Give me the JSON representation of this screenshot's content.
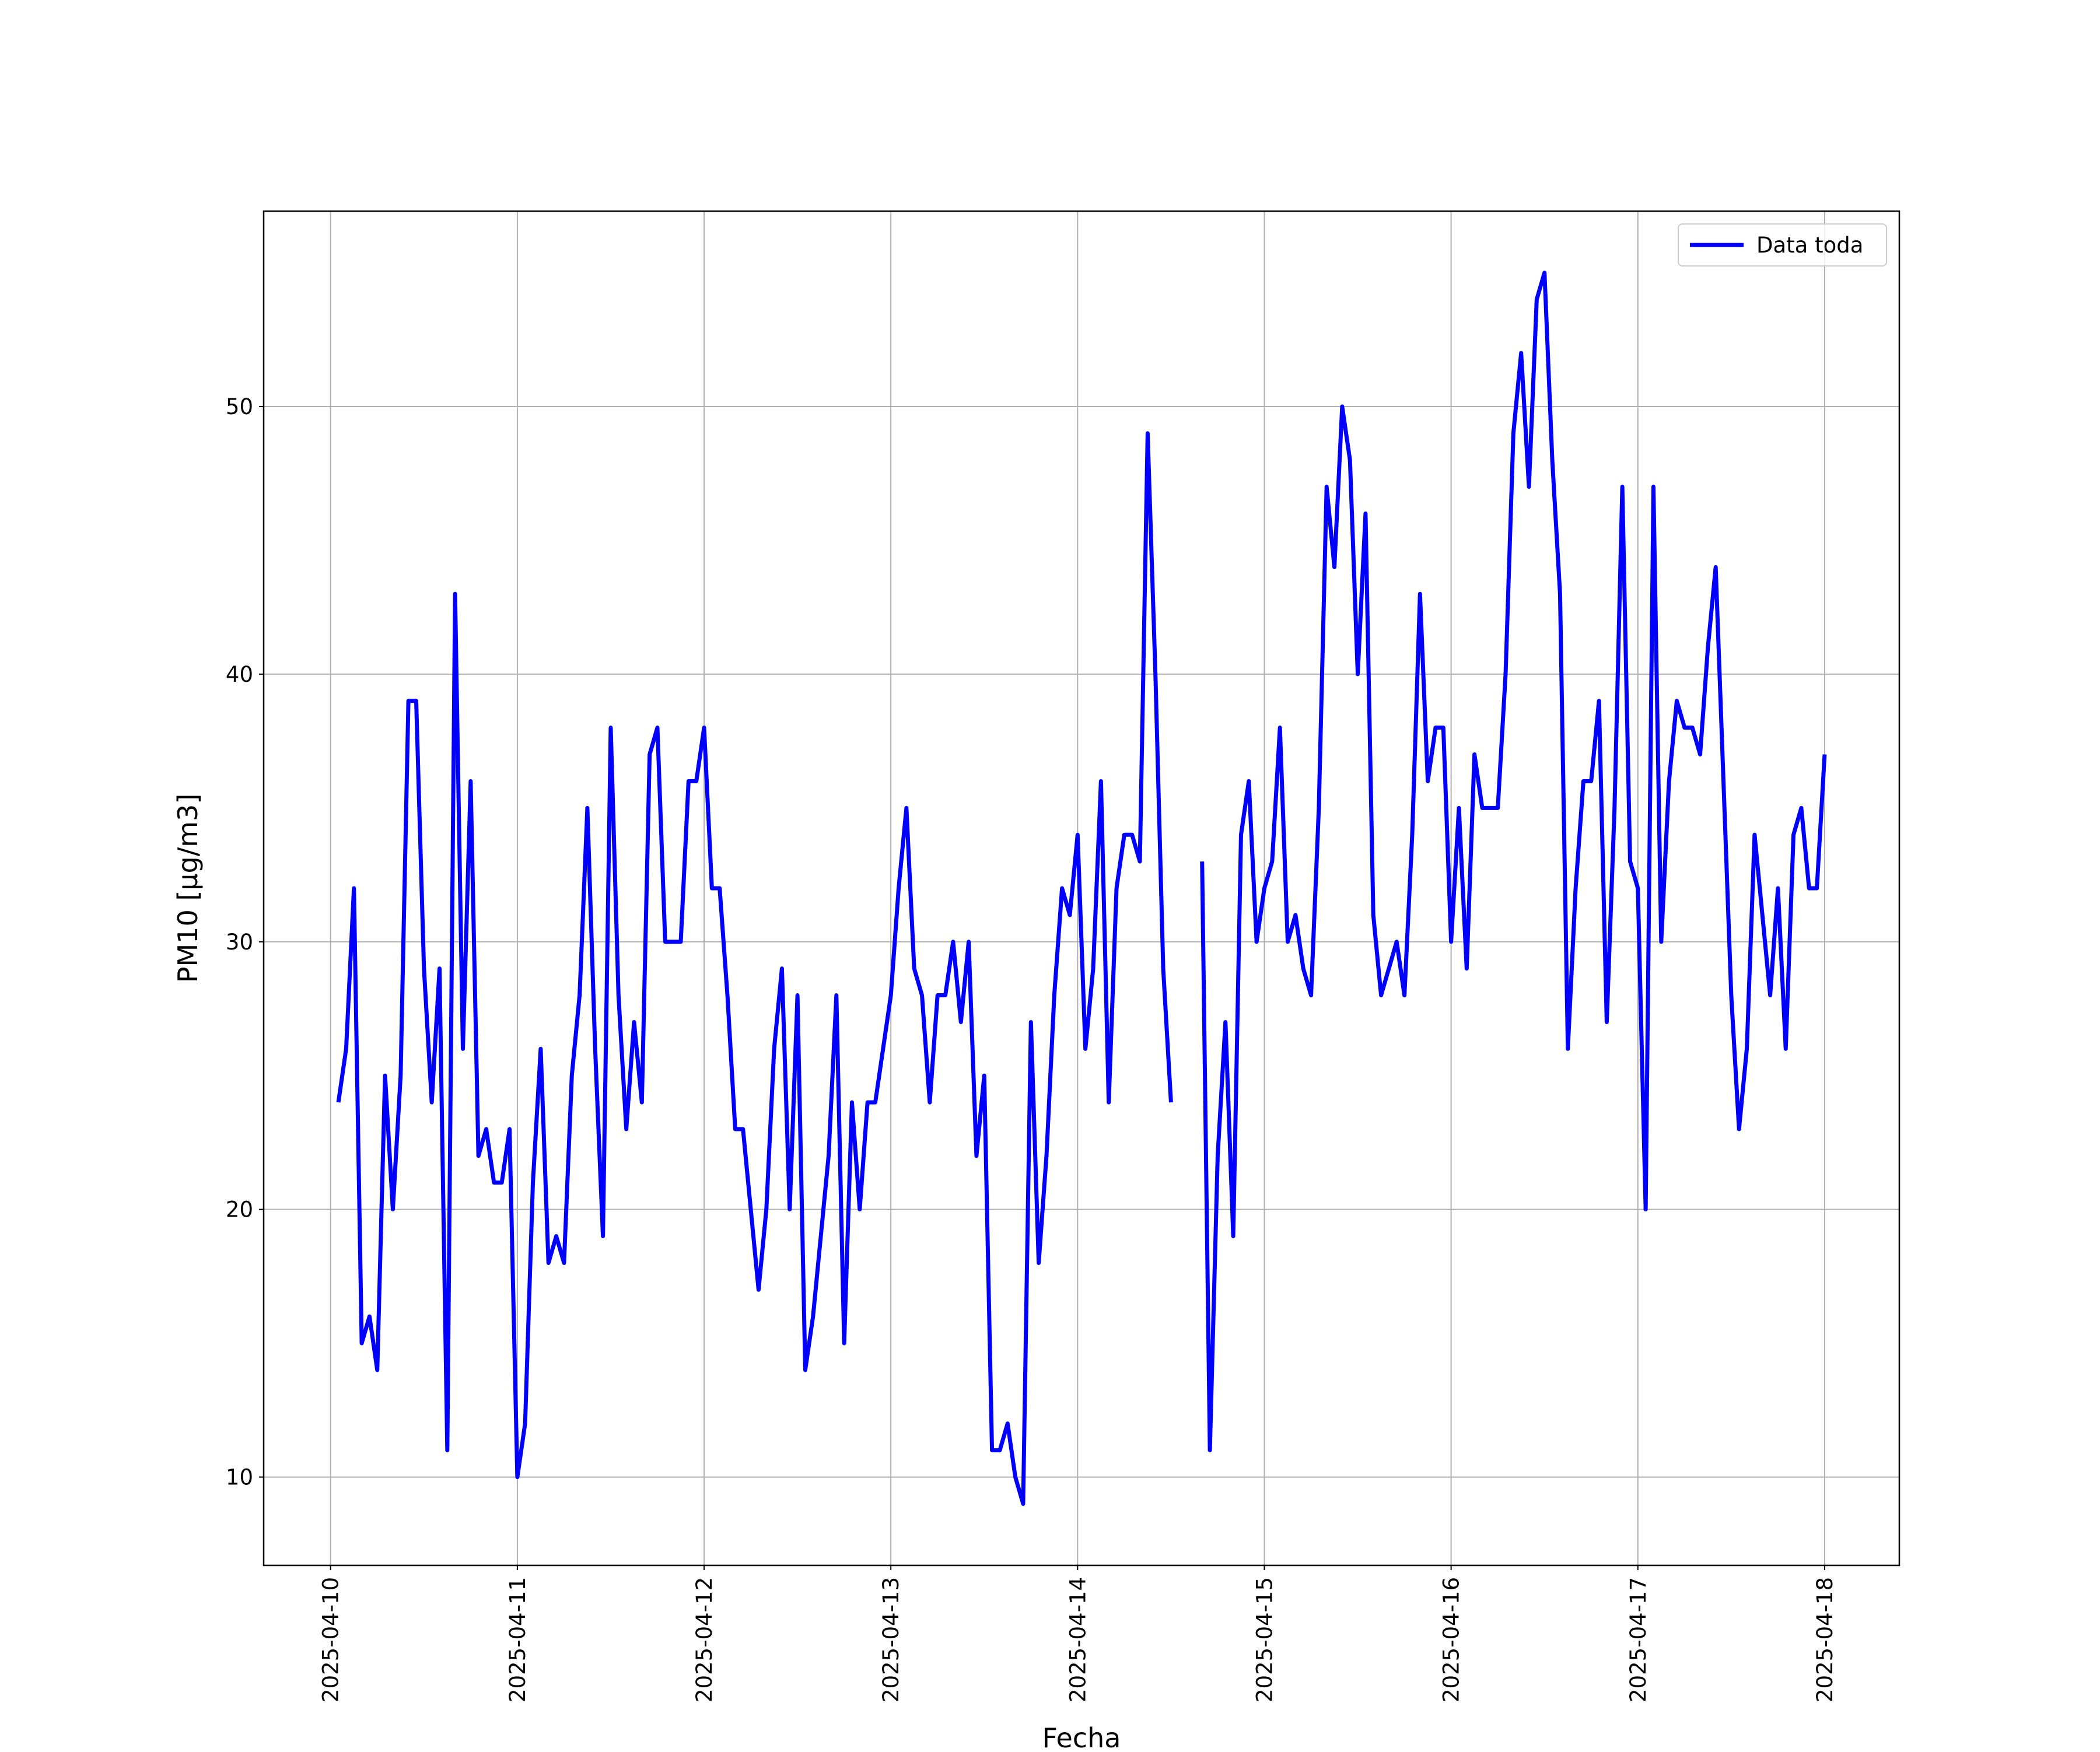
{
  "chart_data": {
    "type": "line",
    "xlabel": "Fecha",
    "ylabel": "PM10 [μg/m3]",
    "x": [
      1,
      2,
      3,
      4,
      5,
      6,
      7,
      8,
      9,
      10,
      11,
      12,
      13,
      14,
      15,
      16,
      17,
      18,
      19,
      20,
      21,
      22,
      23,
      24,
      25,
      26,
      27,
      28,
      29,
      30,
      31,
      32,
      33,
      34,
      35,
      36,
      37,
      38,
      39,
      40,
      41,
      42,
      43,
      44,
      45,
      46,
      47,
      48,
      49,
      50,
      51,
      52,
      53,
      54,
      55,
      56,
      57,
      58,
      59,
      60,
      61,
      62,
      63,
      64,
      65,
      66,
      67,
      68,
      69,
      70,
      71,
      72,
      73,
      74,
      75,
      76,
      77,
      78,
      79,
      80,
      81,
      82,
      83,
      84,
      85,
      86,
      87,
      88,
      89,
      90,
      91,
      92,
      93,
      94,
      95,
      96,
      97,
      98,
      99,
      100,
      101,
      102,
      103,
      104,
      105,
      106,
      107,
      108,
      109,
      110,
      111,
      112,
      113,
      114,
      115,
      116,
      117,
      118,
      119,
      120,
      121,
      122,
      123,
      124,
      125,
      126,
      127,
      128,
      129,
      130,
      131,
      132,
      133,
      134,
      135,
      136,
      137,
      138,
      139,
      140,
      141,
      142,
      143,
      144,
      145,
      146,
      147,
      148,
      149,
      150,
      151,
      152,
      153,
      154,
      155,
      156,
      157,
      158,
      159,
      160,
      161,
      162,
      163,
      164,
      165,
      166,
      167,
      168,
      169,
      170,
      171,
      172,
      173,
      174,
      175,
      176,
      177,
      178,
      179,
      180,
      181,
      182,
      183,
      184,
      185,
      186,
      187,
      188,
      189,
      190,
      191,
      192
    ],
    "series": [
      {
        "name": "Data toda",
        "color": "#0000ff",
        "values": [
          24,
          26,
          32,
          15,
          16,
          14,
          25,
          20,
          25,
          39,
          39,
          29,
          24,
          29,
          11,
          43,
          26,
          36,
          22,
          23,
          21,
          21,
          23,
          10,
          12,
          21,
          26,
          18,
          19,
          18,
          25,
          28,
          35,
          26,
          19,
          38,
          28,
          23,
          27,
          24,
          37,
          38,
          30,
          30,
          30,
          36,
          36,
          38,
          32,
          32,
          28,
          23,
          23,
          20,
          17,
          20,
          26,
          29,
          20,
          28,
          14,
          16,
          19,
          22,
          28,
          15,
          24,
          20,
          24,
          24,
          26,
          28,
          32,
          35,
          29,
          28,
          24,
          28,
          28,
          30,
          27,
          30,
          22,
          25,
          11,
          11,
          12,
          10,
          9,
          27,
          18,
          22,
          28,
          32,
          31,
          34,
          26,
          29,
          36,
          24,
          32,
          34,
          34,
          33,
          49,
          40,
          29,
          24,
          null,
          null,
          null,
          33,
          11,
          22,
          27,
          19,
          34,
          36,
          30,
          32,
          33,
          38,
          30,
          31,
          29,
          28,
          35,
          47,
          44,
          50,
          48,
          40,
          46,
          31,
          28,
          29,
          30,
          28,
          34,
          43,
          36,
          38,
          38,
          30,
          35,
          29,
          37,
          35,
          35,
          35,
          40,
          49,
          52,
          47,
          54,
          55,
          48,
          43,
          26,
          32,
          36,
          36,
          39,
          27,
          35,
          47,
          33,
          32,
          20,
          47,
          30,
          36,
          39,
          38,
          38,
          37,
          41,
          44,
          36,
          28,
          23,
          26,
          34,
          31,
          28,
          32,
          26,
          34,
          35,
          32,
          32,
          37
        ]
      }
    ],
    "xlim": [
      -8.6,
      201.6
    ],
    "xticks": [
      {
        "value": 0,
        "label": "2025-04-10"
      },
      {
        "value": 24,
        "label": "2025-04-11"
      },
      {
        "value": 48,
        "label": "2025-04-12"
      },
      {
        "value": 72,
        "label": "2025-04-13"
      },
      {
        "value": 96,
        "label": "2025-04-14"
      },
      {
        "value": 120,
        "label": "2025-04-15"
      },
      {
        "value": 144,
        "label": "2025-04-16"
      },
      {
        "value": 168,
        "label": "2025-04-17"
      },
      {
        "value": 192,
        "label": "2025-04-18"
      }
    ],
    "ylim": [
      6.7,
      57.3
    ],
    "yticks": [
      10,
      20,
      30,
      40,
      50
    ],
    "grid": true,
    "legend": "upper right"
  }
}
